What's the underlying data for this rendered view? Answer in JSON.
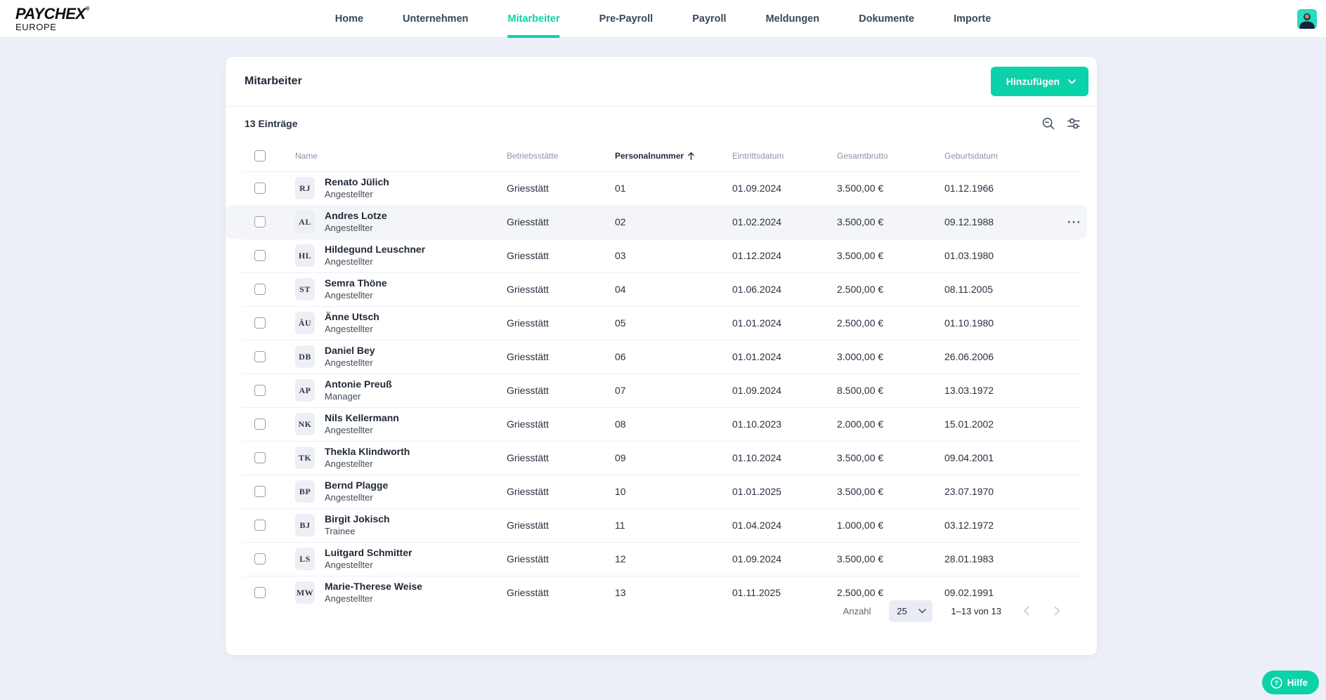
{
  "brand": {
    "name": "PAYCHEX",
    "registered": "®",
    "region": "EUROPE"
  },
  "nav": {
    "items": [
      {
        "label": "Home",
        "active": false
      },
      {
        "label": "Unternehmen",
        "active": false
      },
      {
        "label": "Mitarbeiter",
        "active": true
      },
      {
        "label": "Pre-Payroll",
        "active": false
      },
      {
        "label": "Payroll",
        "active": false
      },
      {
        "label": "Meldungen",
        "active": false
      },
      {
        "label": "Dokumente",
        "active": false
      },
      {
        "label": "Importe",
        "active": false
      }
    ]
  },
  "page": {
    "title": "Mitarbeiter",
    "add_button_label": "Hinzufügen",
    "entries_count": "13 Einträge",
    "table": {
      "columns": [
        "Name",
        "Betriebsstätte",
        "Personalnummer",
        "Eintrittsdatum",
        "Gesamtbrutto",
        "Geburtsdatum"
      ],
      "sorted_column": "Personalnummer",
      "sort_direction": "ascending",
      "rows": [
        {
          "initials": "RJ",
          "name": "Renato Jülich",
          "role": "Angestellter",
          "site": "Griesstätt",
          "number": "01",
          "entry_date": "01.09.2024",
          "gross": "3.500,00 €",
          "birth_date": "01.12.1966",
          "highlighted": false
        },
        {
          "initials": "AL",
          "name": "Andres Lotze",
          "role": "Angestellter",
          "site": "Griesstätt",
          "number": "02",
          "entry_date": "01.02.2024",
          "gross": "3.500,00 €",
          "birth_date": "09.12.1988",
          "highlighted": true
        },
        {
          "initials": "HL",
          "name": "Hildegund Leuschner",
          "role": "Angestellter",
          "site": "Griesstätt",
          "number": "03",
          "entry_date": "01.12.2024",
          "gross": "3.500,00 €",
          "birth_date": "01.03.1980",
          "highlighted": false
        },
        {
          "initials": "ST",
          "name": "Semra Thöne",
          "role": "Angestellter",
          "site": "Griesstätt",
          "number": "04",
          "entry_date": "01.06.2024",
          "gross": "2.500,00 €",
          "birth_date": "08.11.2005",
          "highlighted": false
        },
        {
          "initials": "ÄU",
          "name": "Änne Utsch",
          "role": "Angestellter",
          "site": "Griesstätt",
          "number": "05",
          "entry_date": "01.01.2024",
          "gross": "2.500,00 €",
          "birth_date": "01.10.1980",
          "highlighted": false
        },
        {
          "initials": "DB",
          "name": "Daniel Bey",
          "role": "Angestellter",
          "site": "Griesstätt",
          "number": "06",
          "entry_date": "01.01.2024",
          "gross": "3.000,00 €",
          "birth_date": "26.06.2006",
          "highlighted": false
        },
        {
          "initials": "AP",
          "name": "Antonie Preuß",
          "role": "Manager",
          "site": "Griesstätt",
          "number": "07",
          "entry_date": "01.09.2024",
          "gross": "8.500,00 €",
          "birth_date": "13.03.1972",
          "highlighted": false
        },
        {
          "initials": "NK",
          "name": "Nils Kellermann",
          "role": "Angestellter",
          "site": "Griesstätt",
          "number": "08",
          "entry_date": "01.10.2023",
          "gross": "2.000,00 €",
          "birth_date": "15.01.2002",
          "highlighted": false
        },
        {
          "initials": "TK",
          "name": "Thekla Klindworth",
          "role": "Angestellter",
          "site": "Griesstätt",
          "number": "09",
          "entry_date": "01.10.2024",
          "gross": "3.500,00 €",
          "birth_date": "09.04.2001",
          "highlighted": false
        },
        {
          "initials": "BP",
          "name": "Bernd Plagge",
          "role": "Angestellter",
          "site": "Griesstätt",
          "number": "10",
          "entry_date": "01.01.2025",
          "gross": "3.500,00 €",
          "birth_date": "23.07.1970",
          "highlighted": false
        },
        {
          "initials": "BJ",
          "name": "Birgit Jokisch",
          "role": "Trainee",
          "site": "Griesstätt",
          "number": "11",
          "entry_date": "01.04.2024",
          "gross": "1.000,00 €",
          "birth_date": "03.12.1972",
          "highlighted": false
        },
        {
          "initials": "LS",
          "name": "Luitgard Schmitter",
          "role": "Angestellter",
          "site": "Griesstätt",
          "number": "12",
          "entry_date": "01.09.2024",
          "gross": "3.500,00 €",
          "birth_date": "28.01.1983",
          "highlighted": false
        },
        {
          "initials": "MW",
          "name": "Marie-Therese Weise",
          "role": "Angestellter",
          "site": "Griesstätt",
          "number": "13",
          "entry_date": "01.11.2025",
          "gross": "2.500,00 €",
          "birth_date": "09.02.1991",
          "highlighted": false
        }
      ]
    },
    "pagination": {
      "label": "Anzahl",
      "page_size": "25",
      "range": "1–13 von 13"
    }
  },
  "help_button_label": "Hilfe",
  "colors": {
    "accent_teal": "#0cd2aa",
    "page_background": "#edeff8",
    "row_highlight": "#f4f5f9",
    "header_text": "#8b93a7",
    "body_text": "#28303f"
  }
}
